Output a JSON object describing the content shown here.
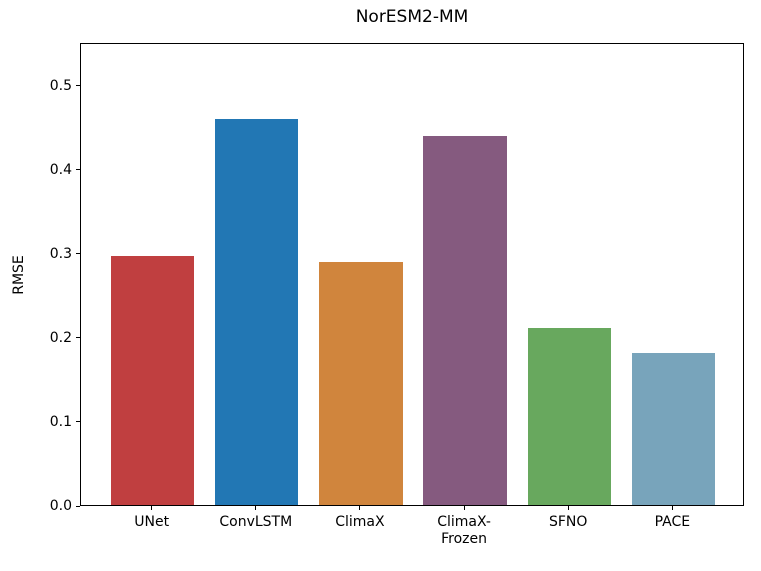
{
  "chart_data": {
    "type": "bar",
    "title": "NorESM2-MM",
    "xlabel": "",
    "ylabel": "RMSE",
    "categories": [
      "UNet",
      "ConvLSTM",
      "ClimaX",
      "ClimaX-\nFrozen",
      "SFNO",
      "PACE"
    ],
    "values": [
      0.296,
      0.459,
      0.289,
      0.439,
      0.211,
      0.181
    ],
    "bar_colors": [
      "#c03f40",
      "#2277b4",
      "#d0853d",
      "#855a7f",
      "#68a85e",
      "#78a4bb"
    ],
    "ytick_labels": [
      "0.0",
      "0.1",
      "0.2",
      "0.3",
      "0.4",
      "0.5"
    ],
    "yticks": [
      0.0,
      0.1,
      0.2,
      0.3,
      0.4,
      0.5
    ],
    "ylim": [
      0,
      0.551
    ],
    "grid": false,
    "legend": "none",
    "bar_width_fraction": 0.8
  }
}
